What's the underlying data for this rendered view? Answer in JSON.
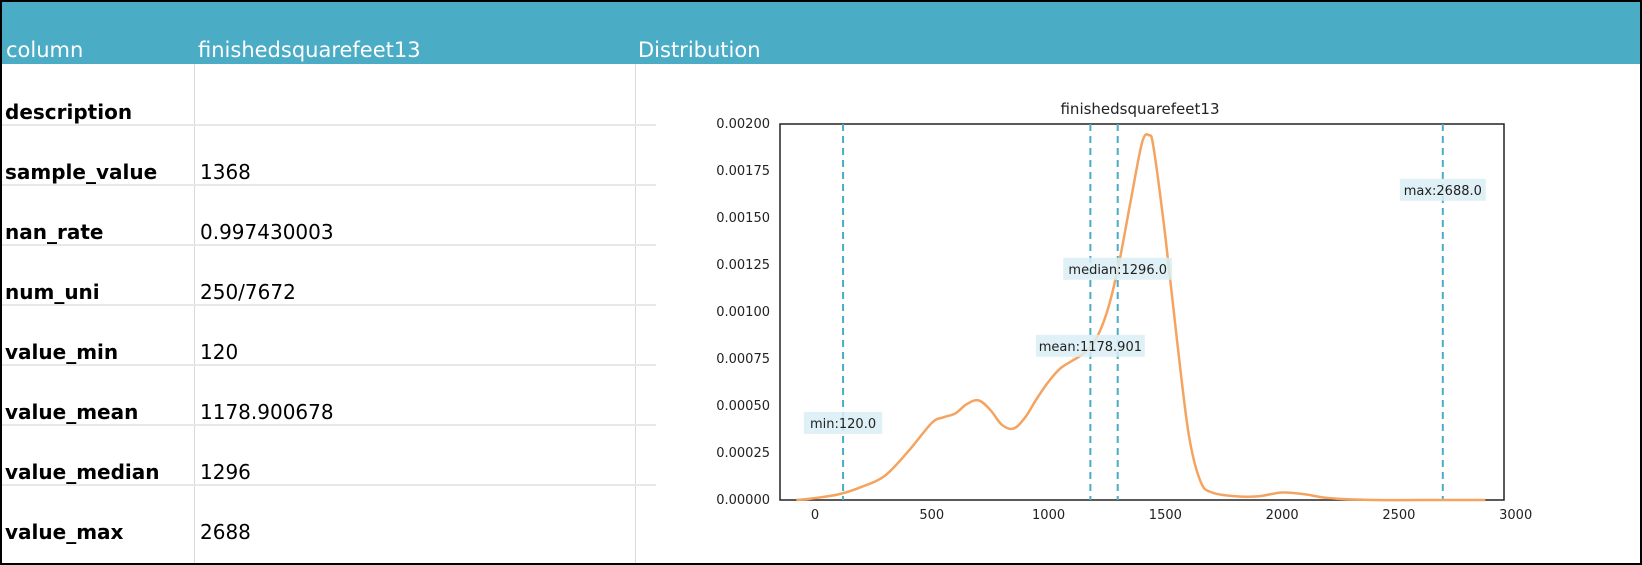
{
  "header": {
    "col1": "column",
    "col2": "finishedsquarefeet13",
    "col3": "Distribution"
  },
  "rows": [
    {
      "key": "description",
      "value": ""
    },
    {
      "key": "sample_value",
      "value": "1368"
    },
    {
      "key": "nan_rate",
      "value": "0.997430003"
    },
    {
      "key": "num_uni",
      "value": "250/7672"
    },
    {
      "key": "value_min",
      "value": "120"
    },
    {
      "key": "value_mean",
      "value": "1178.900678"
    },
    {
      "key": "value_median",
      "value": "1296"
    },
    {
      "key": "value_max",
      "value": "2688"
    }
  ],
  "colors": {
    "header_bg": "#4bacc6",
    "line": "#f4a460",
    "marker": "#4bacc6",
    "label_bg": "#d9eef5"
  },
  "chart_data": {
    "type": "line",
    "title": "finishedsquarefeet13",
    "xlim": [
      -150,
      2950
    ],
    "ylim": [
      0,
      0.002
    ],
    "xticks": [
      "0",
      "500",
      "1000",
      "1500",
      "2000",
      "2500",
      "3000"
    ],
    "xtick_values": [
      0,
      500,
      1000,
      1500,
      2000,
      2500,
      3000
    ],
    "yticks": [
      "0.00000",
      "0.00025",
      "0.00050",
      "0.00075",
      "0.00100",
      "0.00125",
      "0.00150",
      "0.00175",
      "0.00200"
    ],
    "ytick_values": [
      0,
      0.00025,
      0.0005,
      0.00075,
      0.001,
      0.00125,
      0.0015,
      0.00175,
      0.002
    ],
    "grid": false,
    "x": [
      -80,
      0,
      100,
      200,
      300,
      400,
      500,
      550,
      600,
      650,
      700,
      750,
      800,
      850,
      900,
      950,
      1000,
      1050,
      1100,
      1150,
      1200,
      1250,
      1300,
      1350,
      1400,
      1430,
      1450,
      1500,
      1550,
      1600,
      1650,
      1700,
      1800,
      1900,
      2000,
      2100,
      2200,
      2400,
      2600,
      2870
    ],
    "y": [
      0,
      1e-05,
      3e-05,
      7e-05,
      0.00013,
      0.00026,
      0.00041,
      0.00044,
      0.00046,
      0.00051,
      0.00053,
      0.00048,
      0.0004,
      0.00038,
      0.00044,
      0.00054,
      0.00063,
      0.0007,
      0.00074,
      0.00078,
      0.00085,
      0.001,
      0.00125,
      0.00158,
      0.0019,
      0.00194,
      0.00187,
      0.0014,
      0.00085,
      0.00035,
      0.0001,
      4e-05,
      2e-05,
      2e-05,
      4e-05,
      3e-05,
      1e-05,
      0,
      0,
      0
    ],
    "markers": [
      {
        "label": "min:120.0",
        "x": 120,
        "label_y": 0.00041
      },
      {
        "label": "mean:1178.901",
        "x": 1178.901,
        "label_y": 0.00082
      },
      {
        "label": "median:1296.0",
        "x": 1296,
        "label_y": 0.00123
      },
      {
        "label": "max:2688.0",
        "x": 2688,
        "label_y": 0.00165
      }
    ]
  }
}
